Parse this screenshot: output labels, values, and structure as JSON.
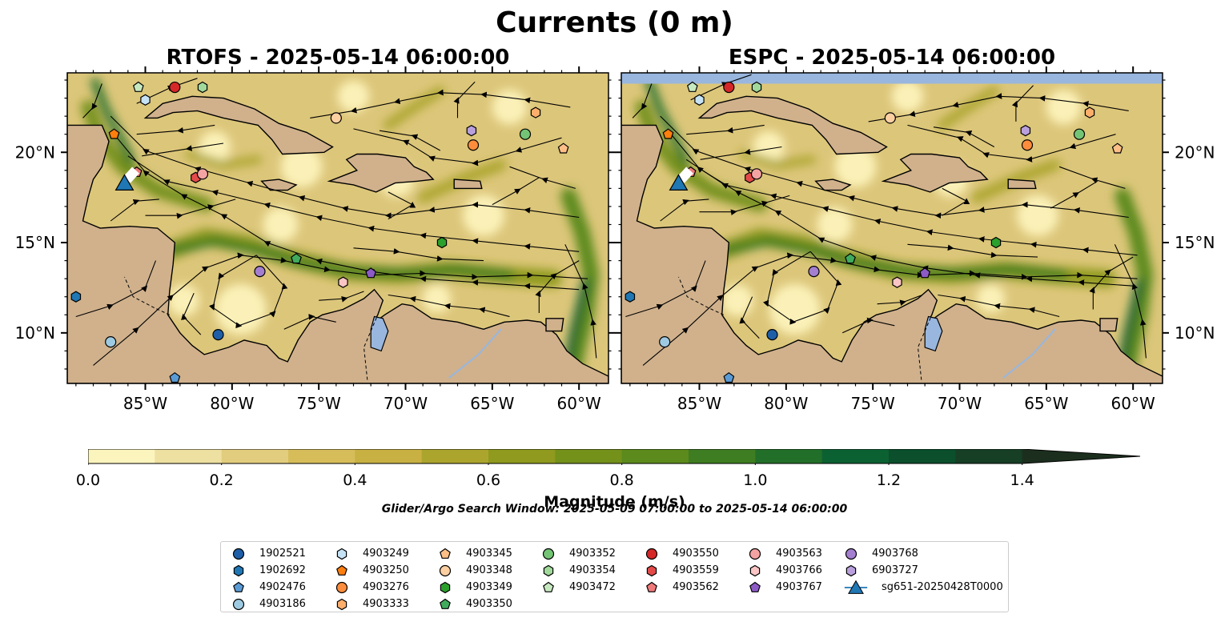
{
  "figure": {
    "title": "Currents (0 m)",
    "panels": [
      {
        "id": "left",
        "title": "RTOFS - 2025-05-14 06:00:00"
      },
      {
        "id": "right",
        "title": "ESPC - 2025-05-14 06:00:00"
      }
    ],
    "lat_ticks": [
      "20°N",
      "15°N",
      "10°N"
    ],
    "lon_ticks": [
      "85°W",
      "80°W",
      "75°W",
      "70°W",
      "65°W",
      "60°W"
    ],
    "extent": {
      "lon_min": -89.5,
      "lon_max": -58.3,
      "lat_min": 7.2,
      "lat_max": 24.4
    },
    "colorbar": {
      "label": "Magnitude (m/s)",
      "ticks": [
        "0.0",
        "0.2",
        "0.4",
        "0.6",
        "0.8",
        "1.0",
        "1.2",
        "1.4"
      ],
      "min": 0.0,
      "max": 1.5,
      "extend": "max",
      "colors": [
        "#fbf4bd",
        "#ede0a0",
        "#e2cd7e",
        "#d6bd5a",
        "#c8b043",
        "#aba52e",
        "#8f9a1e",
        "#74911a",
        "#5c8a1c",
        "#3f7d22",
        "#226f29",
        "#0c6132",
        "#0b4f2c",
        "#163f25",
        "#1c2f1e"
      ]
    },
    "search_window": "Glider/Argo Search Window: 2025-05-09 07:00:00 to 2025-05-14 06:00:00",
    "land_color": "#d0b18c",
    "water_color": "#98b6de"
  },
  "legend": {
    "items": [
      {
        "label": "1902521",
        "marker": "circle",
        "color": "#1f5fa8"
      },
      {
        "label": "1902692",
        "marker": "hexagon",
        "color": "#1f77b4"
      },
      {
        "label": "4902476",
        "marker": "pentagon",
        "color": "#5b9bd5"
      },
      {
        "label": "4903186",
        "marker": "circle",
        "color": "#9ecae1"
      },
      {
        "label": "4903249",
        "marker": "hexagon",
        "color": "#c6e2f5"
      },
      {
        "label": "4903250",
        "marker": "pentagon",
        "color": "#ff7f0e"
      },
      {
        "label": "4903276",
        "marker": "circle",
        "color": "#fd8d3c"
      },
      {
        "label": "4903333",
        "marker": "hexagon",
        "color": "#fdae6b"
      },
      {
        "label": "4903345",
        "marker": "pentagon",
        "color": "#fdbf87"
      },
      {
        "label": "4903348",
        "marker": "circle",
        "color": "#fdd0a2"
      },
      {
        "label": "4903349",
        "marker": "hexagon",
        "color": "#2ca02c"
      },
      {
        "label": "4903350",
        "marker": "pentagon",
        "color": "#41ab5d"
      },
      {
        "label": "4903352",
        "marker": "circle",
        "color": "#74c476"
      },
      {
        "label": "4903354",
        "marker": "hexagon",
        "color": "#a1d99b"
      },
      {
        "label": "4903472",
        "marker": "pentagon",
        "color": "#c7e9c0"
      },
      {
        "label": "4903550",
        "marker": "circle",
        "color": "#d62728"
      },
      {
        "label": "4903559",
        "marker": "hexagon",
        "color": "#e34a4a"
      },
      {
        "label": "4903562",
        "marker": "pentagon",
        "color": "#f07a7a"
      },
      {
        "label": "4903563",
        "marker": "circle",
        "color": "#f4a3a3"
      },
      {
        "label": "4903766",
        "marker": "hexagon",
        "color": "#fcc5c5"
      },
      {
        "label": "4903767",
        "marker": "pentagon",
        "color": "#8c5bc5"
      },
      {
        "label": "4903768",
        "marker": "circle",
        "color": "#a47fd0"
      },
      {
        "label": "6903727",
        "marker": "hexagon",
        "color": "#b9a0dc"
      },
      {
        "label": "sg651-20250428T0000",
        "marker": "triangle-line",
        "color": "#1f77b4"
      }
    ]
  },
  "panels_content": {
    "floats": [
      {
        "id": "1902521",
        "marker": "circle",
        "color": "#1f5fa8",
        "lon": -80.8,
        "lat": 9.9
      },
      {
        "id": "1902692",
        "marker": "hexagon",
        "color": "#1f77b4",
        "lon": -89.0,
        "lat": 12.0
      },
      {
        "id": "4902476",
        "marker": "pentagon",
        "color": "#5b9bd5",
        "lon": -83.3,
        "lat": 7.5
      },
      {
        "id": "4903186",
        "marker": "circle",
        "color": "#9ecae1",
        "lon": -87.0,
        "lat": 9.5
      },
      {
        "id": "4903249",
        "marker": "hexagon",
        "color": "#c6e2f5",
        "lon": -85.0,
        "lat": 22.9
      },
      {
        "id": "4903250",
        "marker": "pentagon",
        "color": "#ff7f0e",
        "lon": -86.8,
        "lat": 21.0
      },
      {
        "id": "4903276",
        "marker": "circle",
        "color": "#fd8d3c",
        "lon": -66.1,
        "lat": 20.4
      },
      {
        "id": "4903333",
        "marker": "hexagon",
        "color": "#fdae6b",
        "lon": -62.5,
        "lat": 22.2
      },
      {
        "id": "4903345",
        "marker": "pentagon",
        "color": "#fdbf87",
        "lon": -60.9,
        "lat": 20.2
      },
      {
        "id": "4903348",
        "marker": "circle",
        "color": "#fdd0a2",
        "lon": -74.0,
        "lat": 21.9
      },
      {
        "id": "4903349",
        "marker": "hexagon",
        "color": "#2ca02c",
        "lon": -67.9,
        "lat": 15.0
      },
      {
        "id": "4903350",
        "marker": "pentagon",
        "color": "#41ab5d",
        "lon": -76.3,
        "lat": 14.1
      },
      {
        "id": "4903352",
        "marker": "circle",
        "color": "#74c476",
        "lon": -63.1,
        "lat": 21.0
      },
      {
        "id": "4903354",
        "marker": "hexagon",
        "color": "#a1d99b",
        "lon": -81.7,
        "lat": 23.6
      },
      {
        "id": "4903472",
        "marker": "pentagon",
        "color": "#c7e9c0",
        "lon": -85.4,
        "lat": 23.6
      },
      {
        "id": "4903550",
        "marker": "circle",
        "color": "#d62728",
        "lon": -83.3,
        "lat": 23.6
      },
      {
        "id": "4903559",
        "marker": "hexagon",
        "color": "#e34a4a",
        "lon": -82.1,
        "lat": 18.6
      },
      {
        "id": "4903562",
        "marker": "pentagon",
        "color": "#f07a7a",
        "lon": -85.5,
        "lat": 18.9
      },
      {
        "id": "4903563",
        "marker": "circle",
        "color": "#f4a3a3",
        "lon": -81.7,
        "lat": 18.8
      },
      {
        "id": "4903766",
        "marker": "hexagon",
        "color": "#fcc5c5",
        "lon": -73.6,
        "lat": 12.8
      },
      {
        "id": "4903767",
        "marker": "pentagon",
        "color": "#8c5bc5",
        "lon": -72.0,
        "lat": 13.3
      },
      {
        "id": "4903768",
        "marker": "circle",
        "color": "#a47fd0",
        "lon": -78.4,
        "lat": 13.4
      },
      {
        "id": "6903727",
        "marker": "hexagon",
        "color": "#b9a0dc",
        "lon": -66.2,
        "lat": 21.2
      }
    ],
    "glider": {
      "id": "sg651-20250428T0000",
      "marker": "triangle",
      "color": "#1f77b4",
      "lon": -86.2,
      "lat": 18.3
    },
    "espc_no_data_above_lat": 23.8
  }
}
